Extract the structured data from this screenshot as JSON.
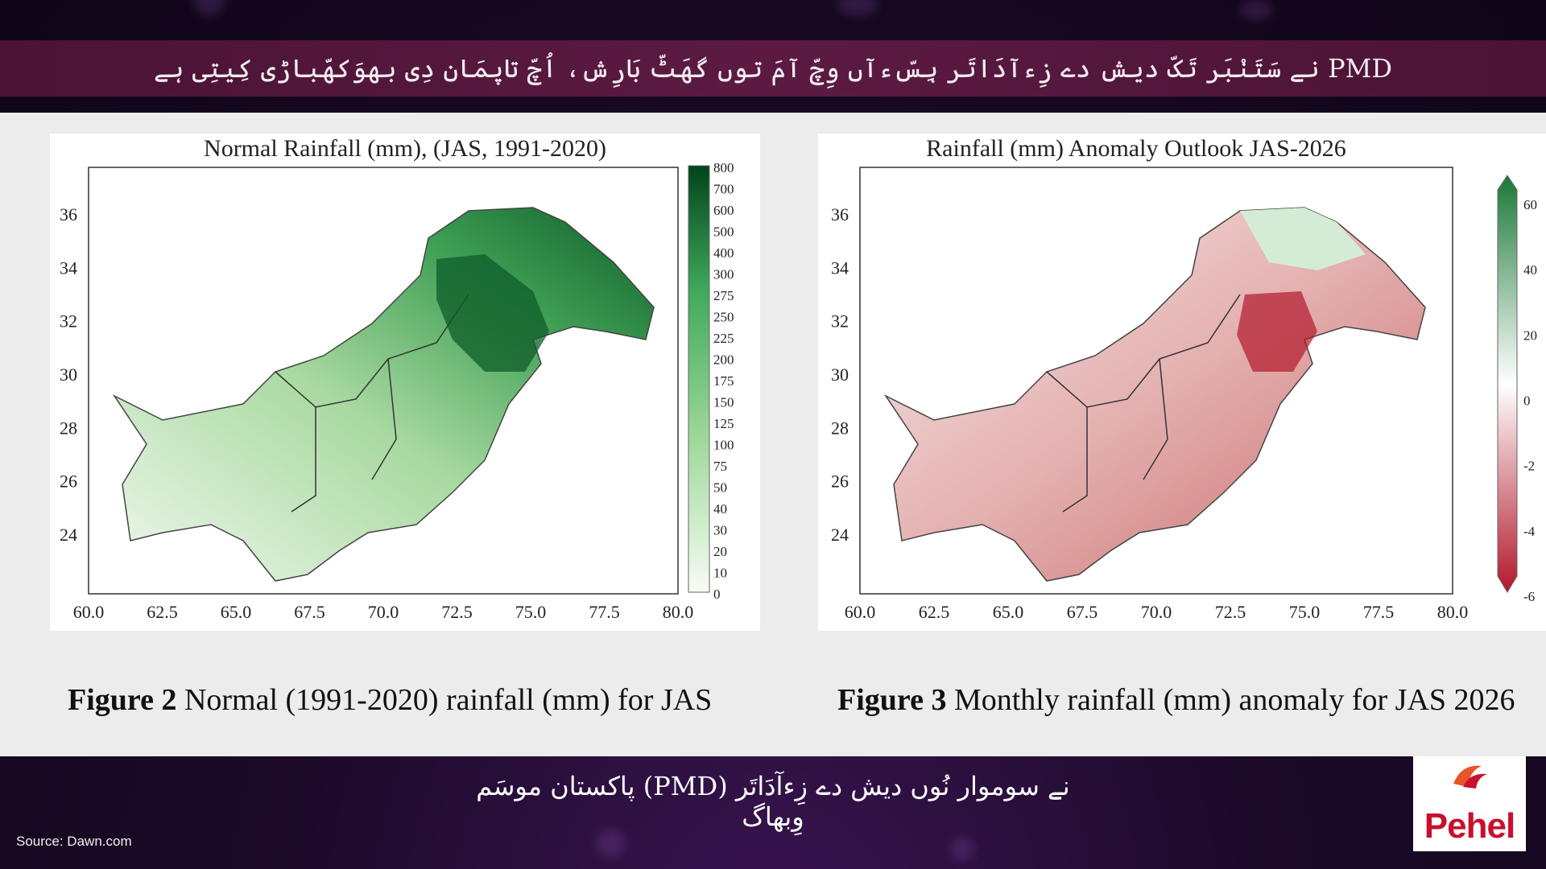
{
  "banner": {
    "headline": "PMD نے سَتَنْبَر تَکّ دیش دے زِءآدَاتَر ہِسّءآں وِچّ آمَ توں گھَٹّ بَارِش، اُچّ تاپمَان دِی بھوَکھّباڑی کِیتِی ہے"
  },
  "maps": [
    {
      "title": "Normal Rainfall (mm), (JAS, 1991-2020)",
      "x_ticks": [
        "60.0",
        "62.5",
        "65.0",
        "67.5",
        "70.0",
        "72.5",
        "75.0",
        "77.5",
        "80.0"
      ],
      "y_ticks": [
        "36",
        "34",
        "32",
        "30",
        "28",
        "26",
        "24"
      ],
      "colorbar_ticks": [
        "800",
        "700",
        "600",
        "500",
        "400",
        "300",
        "275",
        "250",
        "225",
        "200",
        "175",
        "150",
        "125",
        "100",
        "75",
        "50",
        "40",
        "30",
        "20",
        "10",
        "0"
      ],
      "colorscale": [
        "#f7fcf5",
        "#00441b"
      ]
    },
    {
      "title": "Rainfall (mm) Anomaly Outlook  JAS-2026",
      "x_ticks": [
        "60.0",
        "62.5",
        "65.0",
        "67.5",
        "70.0",
        "72.5",
        "75.0",
        "77.5",
        "80.0"
      ],
      "y_ticks": [
        "36",
        "34",
        "32",
        "30",
        "28",
        "26",
        "24"
      ],
      "colorbar_ticks": [
        "60",
        "40",
        "20",
        "0",
        "-2",
        "-4",
        "-6"
      ],
      "colorscale": [
        "#b2182b",
        "#ffffff",
        "#1b7837"
      ]
    }
  ],
  "captions": [
    {
      "label": "Figure 2",
      "text": " Normal (1991-2020) rainfall (mm) for JAS"
    },
    {
      "label": "Figure 3",
      "text": " Monthly rainfall (mm) anomaly for JAS 2026"
    }
  ],
  "bottom": {
    "ticker": "نے سوموار نُوں دیش دے زِءآدَاتَر (PMD) پاکستان موسَم وِبھاگ",
    "source": "Source: Dawn.com",
    "logo_text": "Pehel"
  }
}
